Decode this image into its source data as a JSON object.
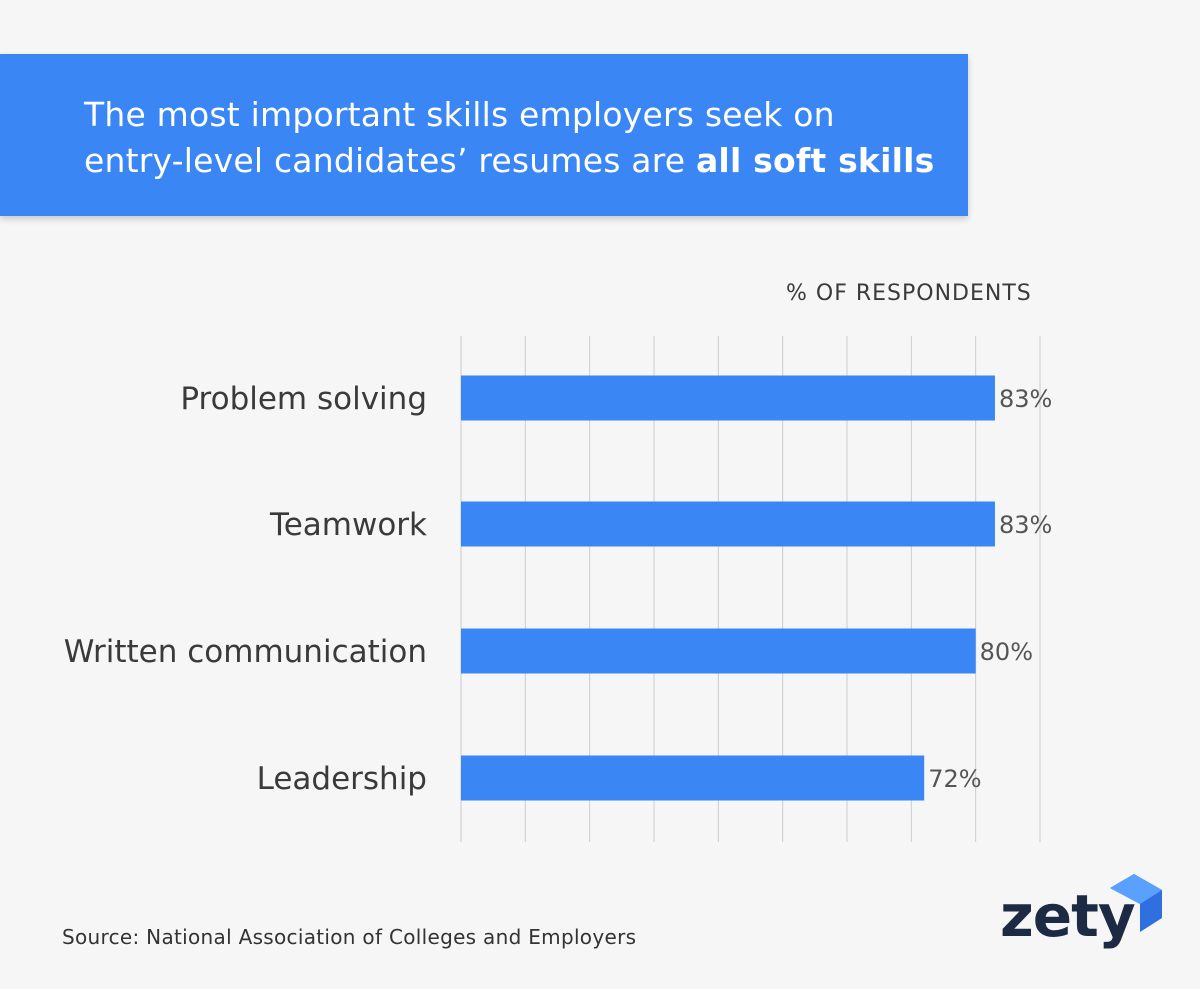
{
  "banner": {
    "line1": "The most important skills employers seek on",
    "line2_prefix": "entry-level candidates’ resumes are ",
    "line2_bold": "all soft skills"
  },
  "source": "Source: National Association of Colleges and Employers",
  "logo": {
    "text": "zety",
    "icon": "zety-triangle-logo"
  },
  "colors": {
    "bar": "#3a86f5",
    "banner": "#3a86f5",
    "grid": "#cccccc",
    "background": "#f6f6f6"
  },
  "chart_data": {
    "type": "bar",
    "orientation": "horizontal",
    "axis_title": "% OF RESPONDENTS",
    "categories": [
      "Problem solving",
      "Teamwork",
      "Written communication",
      "Leadership"
    ],
    "values": [
      83,
      83,
      80,
      72
    ],
    "value_labels": [
      "83%",
      "83%",
      "80%",
      "72%"
    ],
    "xlim": [
      0,
      90
    ],
    "grid": true
  }
}
